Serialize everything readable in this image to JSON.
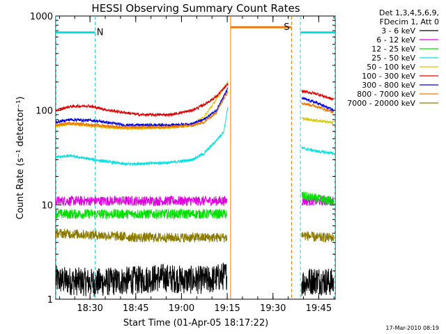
{
  "chart_data": {
    "type": "line",
    "title": "HESSI Observing Summary Count Rates",
    "xlabel": "Start Time (01-Apr-05 18:17:22)",
    "ylabel": "Count Rate (s⁻¹ detector⁻¹)",
    "ylim": [
      1,
      1000
    ],
    "yscale": "log",
    "ytick_labels": [
      "1",
      "10",
      "100",
      "1000"
    ],
    "xlim_min": [
      17.37,
      109.0
    ],
    "x_tick_min": [
      28.6,
      43.6,
      58.6,
      73.6,
      88.6,
      103.6
    ],
    "x_tick_labels": [
      "18:30",
      "18:45",
      "19:00",
      "19:15",
      "19:30",
      "19:45"
    ],
    "legend_header": [
      "Det 1,3,4,5,6,9,",
      "FDecim 1, Att 0"
    ],
    "legend_position": "right, outside plot",
    "series": [
      {
        "name": "3 - 6 keV",
        "color": "#000000",
        "segments": [
          {
            "x": [
              17.4,
              30,
              45,
              52,
              60,
              68,
              73.5
            ],
            "y": [
              1.6,
              1.5,
              1.6,
              1.7,
              1.6,
              1.6,
              1.8
            ]
          },
          {
            "x": [
              98,
              103,
              108.5
            ],
            "y": [
              1.5,
              1.6,
              1.5
            ]
          }
        ]
      },
      {
        "name": "6 - 12 keV",
        "color": "#e000e0",
        "segments": [
          {
            "x": [
              17.4,
              30,
              45,
              60,
              73.5
            ],
            "y": [
              11,
              11,
              11,
              11,
              11
            ]
          },
          {
            "x": [
              98,
              103,
              108.5
            ],
            "y": [
              11,
              11,
              11
            ]
          }
        ]
      },
      {
        "name": "12 - 25 keV",
        "color": "#00e000",
        "segments": [
          {
            "x": [
              17.4,
              30,
              45,
              60,
              73.5
            ],
            "y": [
              8,
              8,
              8,
              8,
              8
            ]
          },
          {
            "x": [
              98,
              103,
              108.5
            ],
            "y": [
              12.5,
              11.5,
              11
            ]
          }
        ]
      },
      {
        "name": "25 - 50 keV",
        "color": "#00e0e0",
        "segments": [
          {
            "x": [
              17.4,
              22,
              30,
              40,
              55,
              62,
              66,
              70,
              72.5,
              73.8
            ],
            "y": [
              32,
              33,
              30,
              27,
              28,
              30,
              35,
              48,
              60,
              110
            ]
          },
          {
            "x": [
              98,
              103,
              108.5
            ],
            "y": [
              40,
              37,
              35
            ]
          }
        ]
      },
      {
        "name": "50 - 100 keV",
        "color": "#d8c800",
        "segments": [
          {
            "x": [
              17.4,
              22,
              30,
              40,
              55,
              62,
              66,
              70,
              73.8
            ],
            "y": [
              68,
              72,
              68,
              64,
              66,
              70,
              85,
              130,
              200
            ]
          },
          {
            "x": [
              98,
              103,
              108.5
            ],
            "y": [
              82,
              78,
              74
            ]
          }
        ]
      },
      {
        "name": "100 - 300 keV",
        "color": "#e00000",
        "segments": [
          {
            "x": [
              17.4,
              22,
              28,
              35,
              45,
              55,
              62,
              66,
              70,
              73.8
            ],
            "y": [
              100,
              110,
              112,
              100,
              90,
              90,
              100,
              115,
              140,
              190
            ]
          },
          {
            "x": [
              98,
              103,
              108.5
            ],
            "y": [
              160,
              150,
              130
            ]
          }
        ]
      },
      {
        "name": "300 - 800 keV",
        "color": "#0000e0",
        "segments": [
          {
            "x": [
              17.4,
              22,
              30,
              40,
              55,
              62,
              66,
              70,
              73.8
            ],
            "y": [
              75,
              80,
              78,
              70,
              70,
              72,
              80,
              100,
              170
            ]
          },
          {
            "x": [
              98,
              103,
              108.5
            ],
            "y": [
              135,
              120,
              100
            ]
          }
        ]
      },
      {
        "name": "800 - 7000 keV",
        "color": "#f07800",
        "segments": [
          {
            "x": [
              17.4,
              22,
              30,
              40,
              55,
              62,
              66,
              70,
              73.8
            ],
            "y": [
              70,
              73,
              70,
              66,
              67,
              69,
              75,
              95,
              160
            ]
          },
          {
            "x": [
              98,
              103,
              108.5
            ],
            "y": [
              120,
              110,
              95
            ]
          }
        ]
      },
      {
        "name": "7000 - 20000 keV",
        "color": "#8a7a00",
        "segments": [
          {
            "x": [
              17.4,
              30,
              45,
              60,
              73.5
            ],
            "y": [
              5,
              4.8,
              4.5,
              4.5,
              4.5
            ]
          },
          {
            "x": [
              98,
              103,
              108.5
            ],
            "y": [
              4.8,
              4.5,
              4.5
            ]
          }
        ]
      }
    ],
    "markers": [
      {
        "label": "N",
        "x_min": [
          17.37,
          30.3
        ],
        "y": 670,
        "color": "#00e0e0"
      },
      {
        "label": "S",
        "x_min": [
          74.7,
          94.7
        ],
        "y": 760,
        "color": "#f07800"
      },
      {
        "label": "",
        "x_min": [
          97.6,
          109.0
        ],
        "y": 670,
        "color": "#00e0e0"
      }
    ],
    "timestamp": "17-Mar-2010 08:19"
  }
}
